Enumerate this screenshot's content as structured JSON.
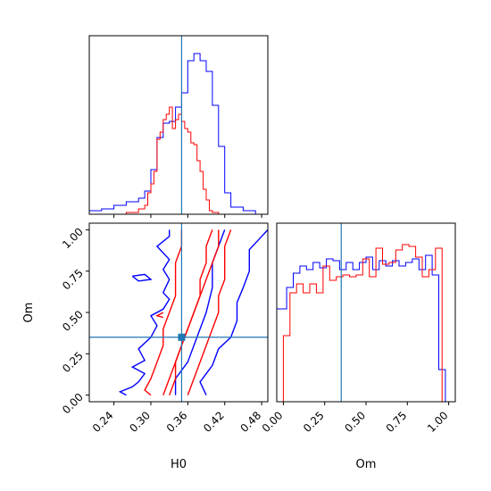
{
  "colors": {
    "blue": "#0000ff",
    "red": "#ff0000",
    "truth": "#1f77b4",
    "axes": "#000000"
  },
  "chart_data": {
    "type": "corner",
    "parameters": [
      "H0",
      "Om"
    ],
    "truth": {
      "H0": 0.35,
      "Om": 0.35
    },
    "panels": {
      "H0_hist": {
        "type": "histogram",
        "xlim": [
          0.2,
          0.49
        ],
        "series": [
          {
            "color": "blue",
            "edges": [
              0.2,
              0.22,
              0.24,
              0.26,
              0.28,
              0.29,
              0.3,
              0.31,
              0.32,
              0.33,
              0.34,
              0.35,
              0.36,
              0.37,
              0.38,
              0.39,
              0.4,
              0.41,
              0.42,
              0.43,
              0.45,
              0.47
            ],
            "counts": [
              0.02,
              0.03,
              0.05,
              0.07,
              0.09,
              0.13,
              0.25,
              0.43,
              0.51,
              0.52,
              0.6,
              0.68,
              0.86,
              0.9,
              0.86,
              0.8,
              0.61,
              0.38,
              0.12,
              0.04,
              0.02
            ]
          },
          {
            "color": "red",
            "edges": [
              0.26,
              0.28,
              0.29,
              0.295,
              0.3,
              0.305,
              0.31,
              0.315,
              0.32,
              0.325,
              0.33,
              0.335,
              0.34,
              0.345,
              0.35,
              0.355,
              0.36,
              0.365,
              0.37,
              0.375,
              0.38,
              0.385,
              0.39,
              0.395,
              0.4,
              0.41
            ],
            "counts": [
              0.01,
              0.03,
              0.05,
              0.12,
              0.17,
              0.24,
              0.42,
              0.46,
              0.53,
              0.56,
              0.6,
              0.48,
              0.53,
              0.56,
              0.52,
              0.48,
              0.46,
              0.4,
              0.39,
              0.3,
              0.24,
              0.14,
              0.08,
              0.02,
              0.01
            ]
          }
        ]
      },
      "H0_Om_contours": {
        "type": "contour",
        "xlabel": "H0",
        "ylabel": "Om",
        "xlim": [
          0.2,
          0.49
        ],
        "ylim": [
          -0.04,
          1.04
        ],
        "xticks": [
          "0.24",
          "0.30",
          "0.36",
          "0.42",
          "0.48"
        ],
        "yticks": [
          "0.00",
          "0.25",
          "0.50",
          "0.75",
          "1.00"
        ],
        "series": [
          {
            "color": "blue",
            "lines": [
              [
                [
                  0.26,
                  0.0
                ],
                [
                  0.25,
                  0.02
                ],
                [
                  0.27,
                  0.05
                ],
                [
                  0.28,
                  0.08
                ],
                [
                  0.29,
                  0.13
                ],
                [
                  0.27,
                  0.17
                ],
                [
                  0.29,
                  0.21
                ],
                [
                  0.28,
                  0.28
                ],
                [
                  0.3,
                  0.35
                ],
                [
                  0.31,
                  0.42
                ],
                [
                  0.3,
                  0.48
                ],
                [
                  0.32,
                  0.52
                ],
                [
                  0.33,
                  0.58
                ],
                [
                  0.32,
                  0.62
                ],
                [
                  0.33,
                  0.7
                ],
                [
                  0.32,
                  0.76
                ],
                [
                  0.33,
                  0.82
                ],
                [
                  0.31,
                  0.9
                ],
                [
                  0.33,
                  0.96
                ],
                [
                  0.33,
                  1.0
                ]
              ],
              [
                [
                  0.34,
                  0.0
                ],
                [
                  0.34,
                  0.1
                ],
                [
                  0.36,
                  0.2
                ],
                [
                  0.37,
                  0.3
                ],
                [
                  0.38,
                  0.4
                ],
                [
                  0.39,
                  0.5
                ],
                [
                  0.4,
                  0.65
                ],
                [
                  0.4,
                  0.8
                ],
                [
                  0.41,
                  0.9
                ],
                [
                  0.42,
                  1.0
                ]
              ],
              [
                [
                  0.39,
                  0.0
                ],
                [
                  0.38,
                  0.08
                ],
                [
                  0.4,
                  0.18
                ],
                [
                  0.41,
                  0.28
                ],
                [
                  0.43,
                  0.35
                ],
                [
                  0.44,
                  0.45
                ],
                [
                  0.44,
                  0.56
                ],
                [
                  0.45,
                  0.65
                ],
                [
                  0.46,
                  0.75
                ],
                [
                  0.46,
                  0.88
                ],
                [
                  0.48,
                  0.96
                ],
                [
                  0.49,
                  1.0
                ]
              ],
              [
                [
                  0.27,
                  0.72
                ],
                [
                  0.29,
                  0.73
                ],
                [
                  0.3,
                  0.7
                ],
                [
                  0.28,
                  0.69
                ],
                [
                  0.27,
                  0.72
                ]
              ]
            ]
          },
          {
            "color": "red",
            "lines": [
              [
                [
                  0.3,
                  0.0
                ],
                [
                  0.29,
                  0.03
                ],
                [
                  0.3,
                  0.1
                ],
                [
                  0.31,
                  0.2
                ],
                [
                  0.32,
                  0.3
                ],
                [
                  0.32,
                  0.4
                ],
                [
                  0.33,
                  0.5
                ],
                [
                  0.34,
                  0.6
                ],
                [
                  0.34,
                  0.7
                ],
                [
                  0.34,
                  0.8
                ],
                [
                  0.35,
                  0.9
                ],
                [
                  0.35,
                  1.0
                ]
              ],
              [
                [
                  0.32,
                  0.0
                ],
                [
                  0.33,
                  0.1
                ],
                [
                  0.34,
                  0.2
                ],
                [
                  0.35,
                  0.3
                ],
                [
                  0.36,
                  0.4
                ],
                [
                  0.37,
                  0.5
                ],
                [
                  0.38,
                  0.6
                ],
                [
                  0.38,
                  0.7
                ],
                [
                  0.39,
                  0.8
                ],
                [
                  0.39,
                  0.9
                ],
                [
                  0.4,
                  1.0
                ]
              ],
              [
                [
                  0.33,
                  0.0
                ],
                [
                  0.34,
                  0.1
                ],
                [
                  0.34,
                  0.2
                ],
                [
                  0.35,
                  0.3
                ],
                [
                  0.36,
                  0.4
                ],
                [
                  0.37,
                  0.5
                ],
                [
                  0.38,
                  0.6
                ],
                [
                  0.39,
                  0.7
                ],
                [
                  0.4,
                  0.8
                ],
                [
                  0.41,
                  0.9
                ],
                [
                  0.41,
                  1.0
                ]
              ],
              [
                [
                  0.36,
                  0.0
                ],
                [
                  0.37,
                  0.1
                ],
                [
                  0.38,
                  0.2
                ],
                [
                  0.39,
                  0.3
                ],
                [
                  0.4,
                  0.4
                ],
                [
                  0.41,
                  0.5
                ],
                [
                  0.41,
                  0.6
                ],
                [
                  0.42,
                  0.7
                ],
                [
                  0.42,
                  0.8
                ],
                [
                  0.42,
                  0.9
                ],
                [
                  0.43,
                  1.0
                ]
              ],
              [
                [
                  0.32,
                  0.47
                ],
                [
                  0.31,
                  0.48
                ],
                [
                  0.32,
                  0.5
                ]
              ]
            ]
          }
        ]
      },
      "Om_hist": {
        "type": "histogram",
        "xlabel": "Om",
        "xlim": [
          -0.04,
          1.04
        ],
        "xticks": [
          "0.00",
          "0.25",
          "0.50",
          "0.75",
          "1.00"
        ],
        "series": [
          {
            "color": "blue",
            "edges": [
              -0.04,
              0.02,
              0.06,
              0.1,
              0.14,
              0.18,
              0.22,
              0.26,
              0.3,
              0.34,
              0.38,
              0.42,
              0.46,
              0.5,
              0.54,
              0.58,
              0.62,
              0.66,
              0.7,
              0.74,
              0.78,
              0.82,
              0.86,
              0.9,
              0.94,
              0.98,
              1.04
            ],
            "counts": [
              0.52,
              0.64,
              0.72,
              0.76,
              0.74,
              0.78,
              0.75,
              0.8,
              0.79,
              0.74,
              0.78,
              0.74,
              0.78,
              0.81,
              0.74,
              0.79,
              0.76,
              0.79,
              0.76,
              0.78,
              0.8,
              0.74,
              0.82,
              0.71,
              0.18,
              0.0
            ]
          },
          {
            "color": "red",
            "edges": [
              -0.04,
              0.0,
              0.04,
              0.08,
              0.12,
              0.16,
              0.2,
              0.24,
              0.28,
              0.32,
              0.36,
              0.4,
              0.44,
              0.48,
              0.52,
              0.56,
              0.6,
              0.64,
              0.68,
              0.72,
              0.76,
              0.8,
              0.84,
              0.88,
              0.92,
              0.96,
              1.0,
              1.04
            ],
            "counts": [
              0.0,
              0.37,
              0.61,
              0.66,
              0.61,
              0.66,
              0.61,
              0.76,
              0.68,
              0.7,
              0.71,
              0.7,
              0.71,
              0.8,
              0.7,
              0.86,
              0.77,
              0.78,
              0.85,
              0.88,
              0.87,
              0.81,
              0.7,
              0.74,
              0.86,
              0.0,
              0.0
            ]
          }
        ]
      }
    }
  }
}
